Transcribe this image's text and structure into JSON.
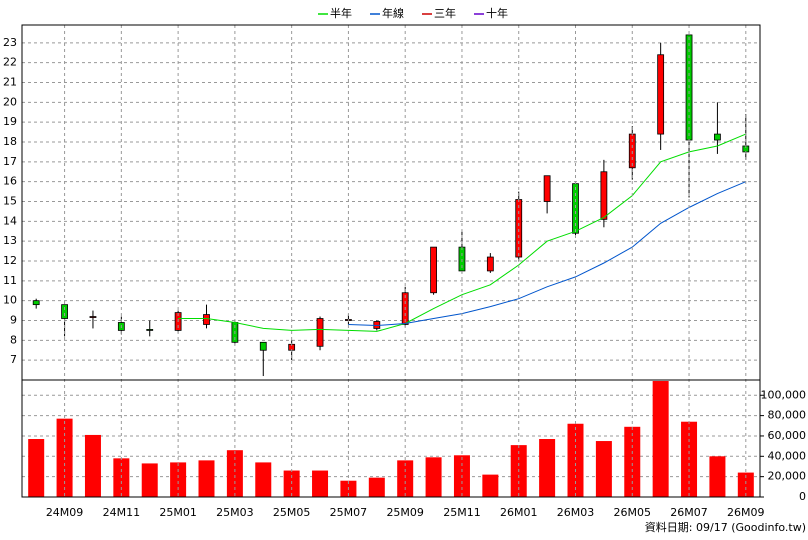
{
  "chart_data": [
    {
      "type": "candlestick",
      "open": [
        10.0,
        9.8,
        9.2,
        8.9,
        8.55,
        8.5,
        8.8,
        8.9,
        7.9,
        7.5,
        7.7,
        9.0,
        8.6,
        8.8,
        10.4,
        12.7,
        11.5,
        12.2,
        15.0,
        15.9,
        14.1,
        16.7,
        18.4,
        23.4,
        18.4,
        17.8
      ],
      "high": [
        10.1,
        9.8,
        9.5,
        9.2,
        9.0,
        9.5,
        9.8,
        9.0,
        7.9,
        8.0,
        9.2,
        9.3,
        9.0,
        10.7,
        12.7,
        13.5,
        12.4,
        15.5,
        16.3,
        15.9,
        17.1,
        18.8,
        23.0,
        23.4,
        20.0,
        19.4
      ],
      "low": [
        9.6,
        8.2,
        8.6,
        8.3,
        8.2,
        8.4,
        8.6,
        7.8,
        6.2,
        7.0,
        7.5,
        8.8,
        8.5,
        8.7,
        10.3,
        11.4,
        11.4,
        12.0,
        14.4,
        13.3,
        13.7,
        16.1,
        17.6,
        15.2,
        17.4,
        17.1
      ],
      "close": [
        9.8,
        9.1,
        9.2,
        8.5,
        8.5,
        9.4,
        9.3,
        7.9,
        7.5,
        7.8,
        9.1,
        9.05,
        8.95,
        10.4,
        12.7,
        11.5,
        12.2,
        15.1,
        16.3,
        13.4,
        16.5,
        18.4,
        22.4,
        18.1,
        18.1,
        17.5
      ],
      "up_color": "#ff0000",
      "down_color": "#00cc00",
      "series": [
        {
          "name": "半年",
          "color": "#00dd00",
          "values": [
            null,
            null,
            null,
            null,
            null,
            9.1,
            9.1,
            8.9,
            8.6,
            8.5,
            8.55,
            8.5,
            8.45,
            8.85,
            9.6,
            10.3,
            10.8,
            11.8,
            13.0,
            13.5,
            14.2,
            15.3,
            17.0,
            17.5,
            17.8,
            18.4
          ]
        },
        {
          "name": "年線",
          "color": "#0055cc",
          "values": [
            null,
            null,
            null,
            null,
            null,
            null,
            null,
            null,
            null,
            null,
            null,
            8.8,
            8.75,
            8.85,
            9.1,
            9.35,
            9.7,
            10.1,
            10.7,
            11.2,
            11.9,
            12.7,
            13.9,
            14.7,
            15.4,
            16.0
          ]
        },
        {
          "name": "三年",
          "color": "#cc0000",
          "values": [
            null,
            null,
            null,
            null,
            null,
            null,
            null,
            null,
            null,
            null,
            null,
            null,
            null,
            null,
            null,
            null,
            null,
            null,
            null,
            null,
            null,
            null,
            null,
            null,
            null,
            null
          ]
        },
        {
          "name": "十年",
          "color": "#6600cc",
          "values": [
            null,
            null,
            null,
            null,
            null,
            null,
            null,
            null,
            null,
            null,
            null,
            null,
            null,
            null,
            null,
            null,
            null,
            null,
            null,
            null,
            null,
            null,
            null,
            null,
            null,
            null
          ]
        }
      ],
      "ylim": [
        6,
        23.9
      ],
      "yticks": [
        7,
        8,
        9,
        10,
        11,
        12,
        13,
        14,
        15,
        16,
        17,
        18,
        19,
        20,
        21,
        22,
        23
      ],
      "grid": true
    },
    {
      "type": "bar",
      "categories": [
        null,
        "24M09",
        null,
        "24M11",
        null,
        "25M01",
        null,
        "25M03",
        null,
        "25M05",
        null,
        "25M07",
        null,
        "25M09",
        null,
        "25M11",
        null,
        "26M01",
        null,
        "26M03",
        null,
        "26M05",
        null,
        "26M07",
        null,
        "26M09"
      ],
      "values": [
        57000,
        77000,
        61000,
        38000,
        33000,
        34000,
        36000,
        46000,
        34000,
        26000,
        26000,
        16000,
        19000,
        36000,
        39000,
        41000,
        22000,
        51000,
        57000,
        72000,
        55000,
        69000,
        114000,
        74000,
        40000,
        24000
      ],
      "color": "#ff0000",
      "ylim": [
        0,
        115000
      ],
      "yticks": [
        0,
        {
          "value": 20000,
          "label": "20,000"
        },
        {
          "value": 40000,
          "label": "40,000"
        },
        {
          "value": 60000,
          "label": "60,000"
        },
        {
          "value": 80000,
          "label": "80,000"
        },
        {
          "value": 100000,
          "label": "100,000"
        }
      ],
      "grid": true
    }
  ],
  "footer": "資料日期: 09/17 (Goodinfo.tw)"
}
